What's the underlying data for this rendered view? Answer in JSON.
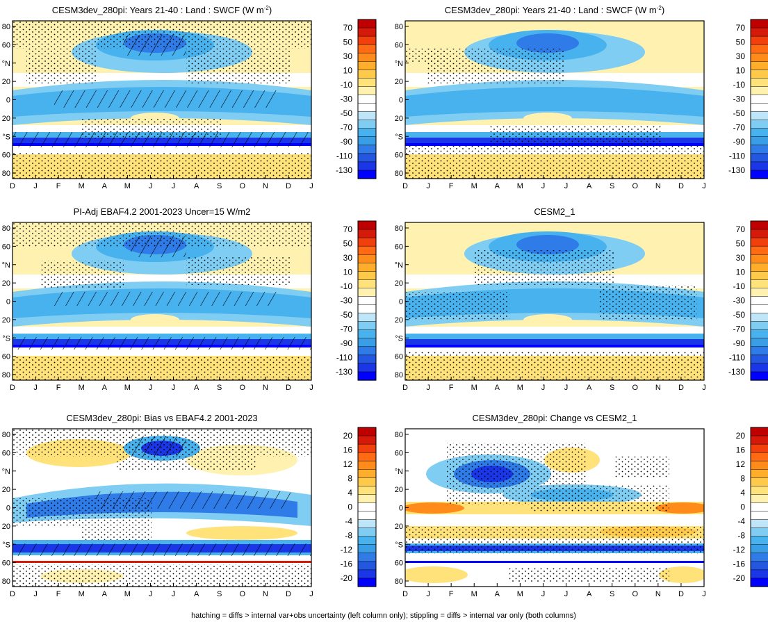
{
  "footer": "hatching = diffs > internal var+obs uncertainty (left column only); stippling = diffs > internal var only (both columns)",
  "colors": {
    "main_scale": [
      "#0000ff",
      "#1a36e6",
      "#2457e0",
      "#2f7be8",
      "#3a9ee6",
      "#48b2ee",
      "#7fcdf2",
      "#bfe6f8",
      "#ffffff",
      "#ffffff",
      "#fff2b0",
      "#ffe27a",
      "#ffc94a",
      "#ffad2a",
      "#ff8c1a",
      "#ff6a12",
      "#f2400d",
      "#d61a0a",
      "#c00000"
    ],
    "diff_scale": [
      "#0000ff",
      "#1a36e6",
      "#2457e0",
      "#2f7be8",
      "#3a9ee6",
      "#48b2ee",
      "#7fcdf2",
      "#bfe6f8",
      "#ffffff",
      "#ffffff",
      "#fff2b0",
      "#ffe27a",
      "#ffc94a",
      "#ffad2a",
      "#ff8c1a",
      "#ff6a12",
      "#f2400d",
      "#d61a0a",
      "#c00000"
    ]
  },
  "chart_data": [
    {
      "type": "heatmap",
      "panel": "left-top",
      "title": "CESM3dev_280pi: Years 21-40 : Land : SWCF (W m",
      "title_sup": "-2",
      "title_suffix": ")",
      "x_ticks": [
        "D",
        "J",
        "F",
        "M",
        "A",
        "M",
        "J",
        "J",
        "A",
        "S",
        "O",
        "N",
        "D",
        "J"
      ],
      "y_ticks": [
        "80",
        "60",
        "°N",
        "20",
        "0",
        "20",
        "°S",
        "60",
        "80"
      ],
      "colorbar_labels": [
        "70",
        "50",
        "30",
        "10",
        "-10",
        "-30",
        "-50",
        "-70",
        "-90",
        "-110",
        "-130"
      ],
      "hatching": true,
      "stippling": true
    },
    {
      "type": "heatmap",
      "panel": "right-top",
      "title": "CESM3dev_280pi: Years 21-40 : Land : SWCF (W m",
      "title_sup": "-2",
      "title_suffix": ")",
      "x_ticks": [
        "D",
        "J",
        "F",
        "M",
        "A",
        "M",
        "J",
        "J",
        "A",
        "S",
        "O",
        "N",
        "D",
        "J"
      ],
      "y_ticks": [
        "80",
        "60",
        "°N",
        "20",
        "0",
        "20",
        "°S",
        "60",
        "80"
      ],
      "colorbar_labels": [
        "70",
        "50",
        "30",
        "10",
        "-10",
        "-30",
        "-50",
        "-70",
        "-90",
        "-110",
        "-130"
      ],
      "hatching": false,
      "stippling": true
    },
    {
      "type": "heatmap",
      "panel": "left-middle",
      "title": "PI-Adj EBAF4.2 2001-2023 Uncer=15 W/m2",
      "x_ticks": [
        "D",
        "J",
        "F",
        "M",
        "A",
        "M",
        "J",
        "J",
        "A",
        "S",
        "O",
        "N",
        "D",
        "J"
      ],
      "y_ticks": [
        "80",
        "60",
        "°N",
        "20",
        "0",
        "20",
        "°S",
        "60",
        "80"
      ],
      "colorbar_labels": [
        "70",
        "50",
        "30",
        "10",
        "-10",
        "-30",
        "-50",
        "-70",
        "-90",
        "-110",
        "-130"
      ],
      "hatching": true,
      "stippling": true
    },
    {
      "type": "heatmap",
      "panel": "right-middle",
      "title": "CESM2_1",
      "x_ticks": [
        "D",
        "J",
        "F",
        "M",
        "A",
        "M",
        "J",
        "J",
        "A",
        "S",
        "O",
        "N",
        "D",
        "J"
      ],
      "y_ticks": [
        "80",
        "60",
        "°N",
        "20",
        "0",
        "20",
        "°S",
        "60",
        "80"
      ],
      "colorbar_labels": [
        "70",
        "50",
        "30",
        "10",
        "-10",
        "-30",
        "-50",
        "-70",
        "-90",
        "-110",
        "-130"
      ],
      "hatching": false,
      "stippling": true
    },
    {
      "type": "heatmap",
      "panel": "left-bottom",
      "title": "CESM3dev_280pi: Bias vs EBAF4.2 2001-2023",
      "x_ticks": [
        "D",
        "J",
        "F",
        "M",
        "A",
        "M",
        "J",
        "J",
        "A",
        "S",
        "O",
        "N",
        "D",
        "J"
      ],
      "y_ticks": [
        "80",
        "60",
        "°N",
        "20",
        "0",
        "20",
        "°S",
        "60",
        "80"
      ],
      "colorbar_labels": [
        "20",
        "16",
        "12",
        "8",
        "4",
        "0",
        "-4",
        "-8",
        "-12",
        "-16",
        "-20"
      ],
      "hatching": true,
      "stippling": true
    },
    {
      "type": "heatmap",
      "panel": "right-bottom",
      "title": "CESM3dev_280pi: Change vs CESM2_1",
      "x_ticks": [
        "D",
        "J",
        "F",
        "M",
        "A",
        "M",
        "J",
        "J",
        "A",
        "S",
        "O",
        "N",
        "D",
        "J"
      ],
      "y_ticks": [
        "80",
        "60",
        "°N",
        "20",
        "0",
        "20",
        "°S",
        "60",
        "80"
      ],
      "colorbar_labels": [
        "20",
        "16",
        "12",
        "8",
        "4",
        "0",
        "-4",
        "-8",
        "-12",
        "-16",
        "-20"
      ],
      "hatching": false,
      "stippling": true
    }
  ]
}
